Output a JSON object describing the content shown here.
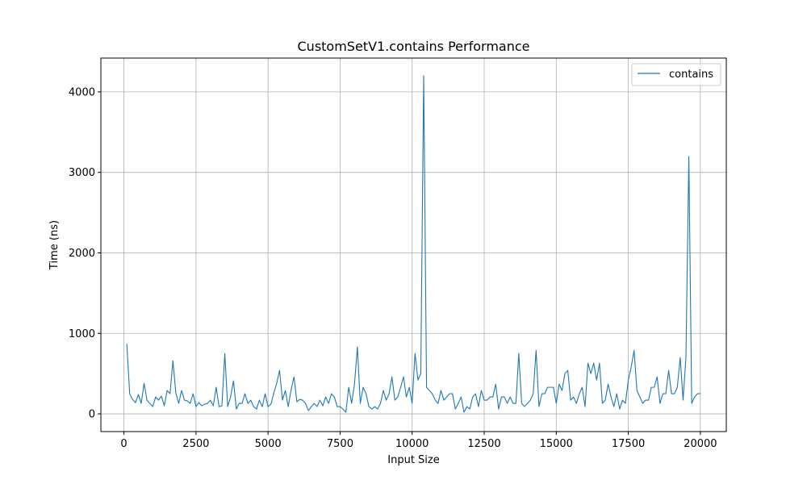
{
  "chart_data": {
    "type": "line",
    "title": "CustomSetV1.contains Performance",
    "xlabel": "Input Size",
    "ylabel": "Time (ns)",
    "xlim": [
      -800,
      20900
    ],
    "ylim": [
      -220,
      4420
    ],
    "xticks": [
      0,
      2500,
      5000,
      7500,
      10000,
      12500,
      15000,
      17500,
      20000
    ],
    "yticks": [
      0,
      1000,
      2000,
      3000,
      4000
    ],
    "grid": true,
    "legend_position": "top-right",
    "series": [
      {
        "name": "contains",
        "color": "#1f77b4",
        "x": [
          100,
          200,
          300,
          400,
          500,
          600,
          700,
          800,
          900,
          1000,
          1100,
          1200,
          1300,
          1400,
          1500,
          1600,
          1700,
          1800,
          1900,
          2000,
          2100,
          2200,
          2300,
          2400,
          2500,
          2600,
          2700,
          2800,
          2900,
          3000,
          3100,
          3200,
          3300,
          3400,
          3500,
          3600,
          3700,
          3800,
          3900,
          4000,
          4100,
          4200,
          4300,
          4400,
          4500,
          4600,
          4700,
          4800,
          4900,
          5000,
          5100,
          5200,
          5300,
          5400,
          5500,
          5600,
          5700,
          5800,
          5900,
          6000,
          6100,
          6200,
          6300,
          6400,
          6500,
          6600,
          6700,
          6800,
          6900,
          7000,
          7100,
          7200,
          7300,
          7400,
          7500,
          7600,
          7700,
          7800,
          7900,
          8000,
          8100,
          8200,
          8300,
          8400,
          8500,
          8600,
          8700,
          8800,
          8900,
          9000,
          9100,
          9200,
          9300,
          9400,
          9500,
          9600,
          9700,
          9800,
          9900,
          10000,
          10100,
          10200,
          10300,
          10400,
          10500,
          10600,
          10700,
          10800,
          10900,
          11000,
          11100,
          11200,
          11300,
          11400,
          11500,
          11600,
          11700,
          11800,
          11900,
          12000,
          12100,
          12200,
          12300,
          12400,
          12500,
          12600,
          12700,
          12800,
          12900,
          13000,
          13100,
          13200,
          13300,
          13400,
          13500,
          13600,
          13700,
          13800,
          13900,
          14000,
          14100,
          14200,
          14300,
          14400,
          14500,
          14600,
          14700,
          14800,
          14900,
          15000,
          15100,
          15200,
          15300,
          15400,
          15500,
          15600,
          15700,
          15800,
          15900,
          16000,
          16100,
          16200,
          16300,
          16400,
          16500,
          16600,
          16700,
          16800,
          16900,
          17000,
          17100,
          17200,
          17300,
          17400,
          17500,
          17600,
          17700,
          17800,
          17900,
          18000,
          18100,
          18200,
          18300,
          18400,
          18500,
          18600,
          18700,
          18800,
          18900,
          19000,
          19100,
          19200,
          19300,
          19400,
          19500,
          19600,
          19700,
          19800,
          19900,
          20000
        ],
        "y": [
          870,
          250,
          180,
          140,
          240,
          130,
          380,
          170,
          130,
          90,
          210,
          170,
          220,
          100,
          290,
          250,
          660,
          260,
          130,
          290,
          170,
          160,
          130,
          250,
          90,
          140,
          100,
          120,
          130,
          170,
          100,
          330,
          90,
          100,
          750,
          90,
          210,
          410,
          60,
          130,
          130,
          250,
          130,
          170,
          90,
          60,
          170,
          90,
          250,
          90,
          120,
          260,
          380,
          540,
          170,
          290,
          90,
          300,
          460,
          150,
          180,
          170,
          130,
          40,
          90,
          130,
          90,
          170,
          100,
          210,
          130,
          250,
          210,
          90,
          90,
          60,
          20,
          330,
          130,
          370,
          830,
          130,
          330,
          250,
          90,
          60,
          90,
          60,
          130,
          290,
          170,
          250,
          460,
          170,
          210,
          330,
          460,
          210,
          330,
          130,
          750,
          420,
          500,
          4200,
          330,
          290,
          250,
          170,
          130,
          290,
          170,
          210,
          250,
          250,
          60,
          130,
          210,
          20,
          90,
          60,
          210,
          250,
          90,
          290,
          170,
          170,
          210,
          210,
          370,
          60,
          210,
          210,
          130,
          210,
          130,
          130,
          750,
          130,
          90,
          130,
          170,
          250,
          790,
          90,
          250,
          250,
          330,
          330,
          330,
          130,
          370,
          290,
          500,
          540,
          170,
          210,
          130,
          250,
          330,
          90,
          630,
          500,
          630,
          420,
          630,
          130,
          170,
          370,
          210,
          90,
          250,
          60,
          170,
          130,
          420,
          580,
          790,
          290,
          210,
          130,
          170,
          170,
          330,
          330,
          460,
          130,
          250,
          250,
          540,
          250,
          250,
          330,
          700,
          170,
          700,
          3200,
          130,
          210,
          250,
          250
        ]
      }
    ]
  }
}
